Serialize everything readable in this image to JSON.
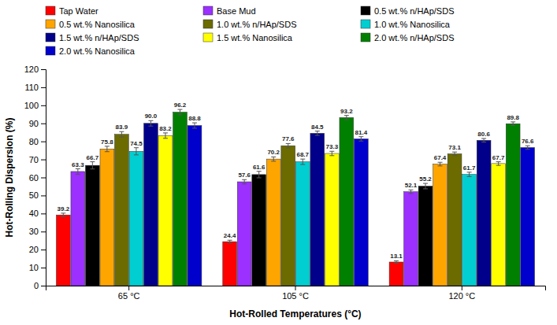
{
  "chart_data": {
    "type": "bar",
    "categories": [
      "65 °C",
      "105 °C",
      "120 °C"
    ],
    "series": [
      {
        "name": "Tap Water",
        "color": "#FF0000",
        "values": [
          39.2,
          24.4,
          13.1
        ],
        "value_labels": [
          "39.2",
          "24.4",
          "13.1"
        ],
        "errors": [
          1.0,
          0.8,
          0.7
        ]
      },
      {
        "name": "Base Mud",
        "color": "#9B30FF",
        "values": [
          63.3,
          57.6,
          52.1
        ],
        "value_labels": [
          "63.3",
          "57.6",
          "52.1"
        ],
        "errors": [
          1.5,
          1.2,
          1.0
        ]
      },
      {
        "name": "0.5 wt.% n/HAp/SDS",
        "color": "#000000",
        "values": [
          66.7,
          61.6,
          55.2
        ],
        "value_labels": [
          "66.7",
          "61.6",
          "55.2"
        ],
        "errors": [
          2.0,
          1.8,
          1.5
        ]
      },
      {
        "name": "0.5 wt.% Nanosilica",
        "color": "#FFA500",
        "values": [
          75.8,
          70.2,
          67.4
        ],
        "value_labels": [
          "75.8",
          "70.2",
          "67.4"
        ],
        "errors": [
          1.5,
          1.2,
          1.0
        ]
      },
      {
        "name": "1.0 wt.% n/HAp/SDS",
        "color": "#6B6B00",
        "values": [
          83.9,
          77.6,
          73.1
        ],
        "value_labels": [
          "83.9",
          "77.6",
          "73.1"
        ],
        "errors": [
          1.5,
          1.2,
          1.0
        ]
      },
      {
        "name": "1.0 wt.% Nanosilica",
        "color": "#00CED1",
        "values": [
          74.5,
          68.7,
          61.7
        ],
        "value_labels": [
          "74.5",
          "68.7",
          "61.7"
        ],
        "errors": [
          2.0,
          1.5,
          1.2
        ]
      },
      {
        "name": "1.5 wt.% n/HAp/SDS",
        "color": "#00008B",
        "values": [
          90.0,
          84.5,
          80.6
        ],
        "value_labels": [
          "90.0",
          "84.5",
          "80.6"
        ],
        "errors": [
          1.5,
          1.2,
          1.0
        ]
      },
      {
        "name": "1.5 wt.% Nanosilica",
        "color": "#FFFF00",
        "values": [
          83.2,
          73.3,
          67.7
        ],
        "value_labels": [
          "83.2",
          "73.3",
          "67.7"
        ],
        "errors": [
          1.5,
          1.2,
          1.0
        ]
      },
      {
        "name": "2.0 wt.% n/HAp/SDS",
        "color": "#008000",
        "values": [
          96.2,
          93.2,
          89.8
        ],
        "value_labels": [
          "96.2",
          "93.2",
          "89.8"
        ],
        "errors": [
          1.5,
          1.2,
          1.0
        ]
      },
      {
        "name": "2.0 wt.% Nanosilica",
        "color": "#0000CD",
        "values": [
          88.8,
          81.4,
          76.6
        ],
        "value_labels": [
          "88.8",
          "81.4",
          "76.6"
        ],
        "errors": [
          1.5,
          1.2,
          1.0
        ]
      }
    ],
    "xlabel": "Hot-Rolled Temperatures (°C)",
    "ylabel": "Hot-Rolling Dispersion (%)",
    "ylim": [
      0,
      120
    ],
    "yticks": [
      0,
      10,
      20,
      30,
      40,
      50,
      60,
      70,
      80,
      90,
      100,
      110,
      120
    ],
    "data_labels": true,
    "legend": "top",
    "grid": false
  }
}
